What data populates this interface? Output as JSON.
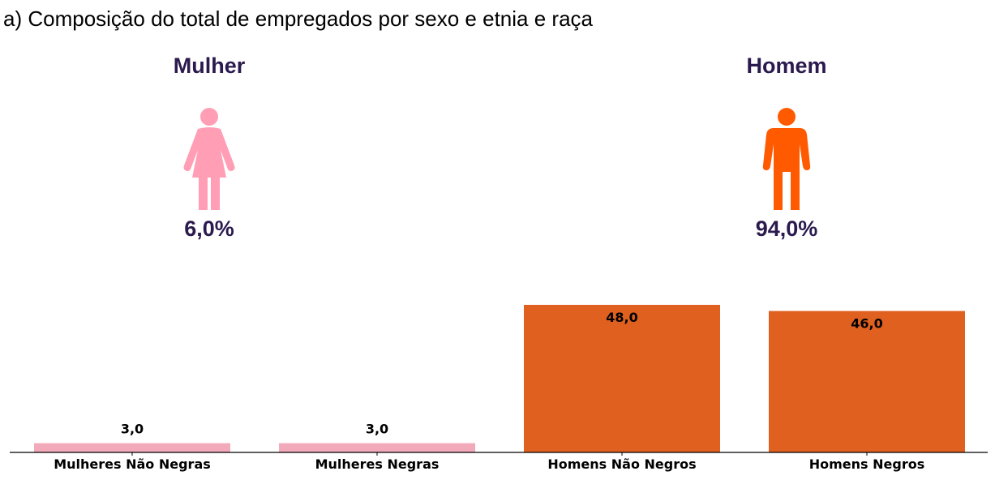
{
  "title": "a) Composição do total de empregados por sexo e etnia e raça",
  "groups": [
    {
      "label": "Mulher",
      "percent": "6,0%",
      "icon": "female-person-icon",
      "color": "#ff9eb5"
    },
    {
      "label": "Homem",
      "percent": "94,0%",
      "icon": "male-person-icon",
      "color": "#ff5a00"
    }
  ],
  "chart_data": {
    "type": "bar",
    "title": "",
    "xlabel": "",
    "ylabel": "",
    "categories": [
      "Mulheres Não Negras",
      "Mulheres Negras",
      "Homens Não Negros",
      "Homens Negros"
    ],
    "values": [
      3.0,
      3.0,
      48.0,
      46.0
    ],
    "data_labels": [
      "3,0",
      "3,0",
      "48,0",
      "46,0"
    ],
    "colors": [
      "#f2a9b9",
      "#f2a9b9",
      "#e06020",
      "#e06020"
    ],
    "ylim": [
      0,
      48
    ],
    "grid": false,
    "y_axis_visible": false
  }
}
